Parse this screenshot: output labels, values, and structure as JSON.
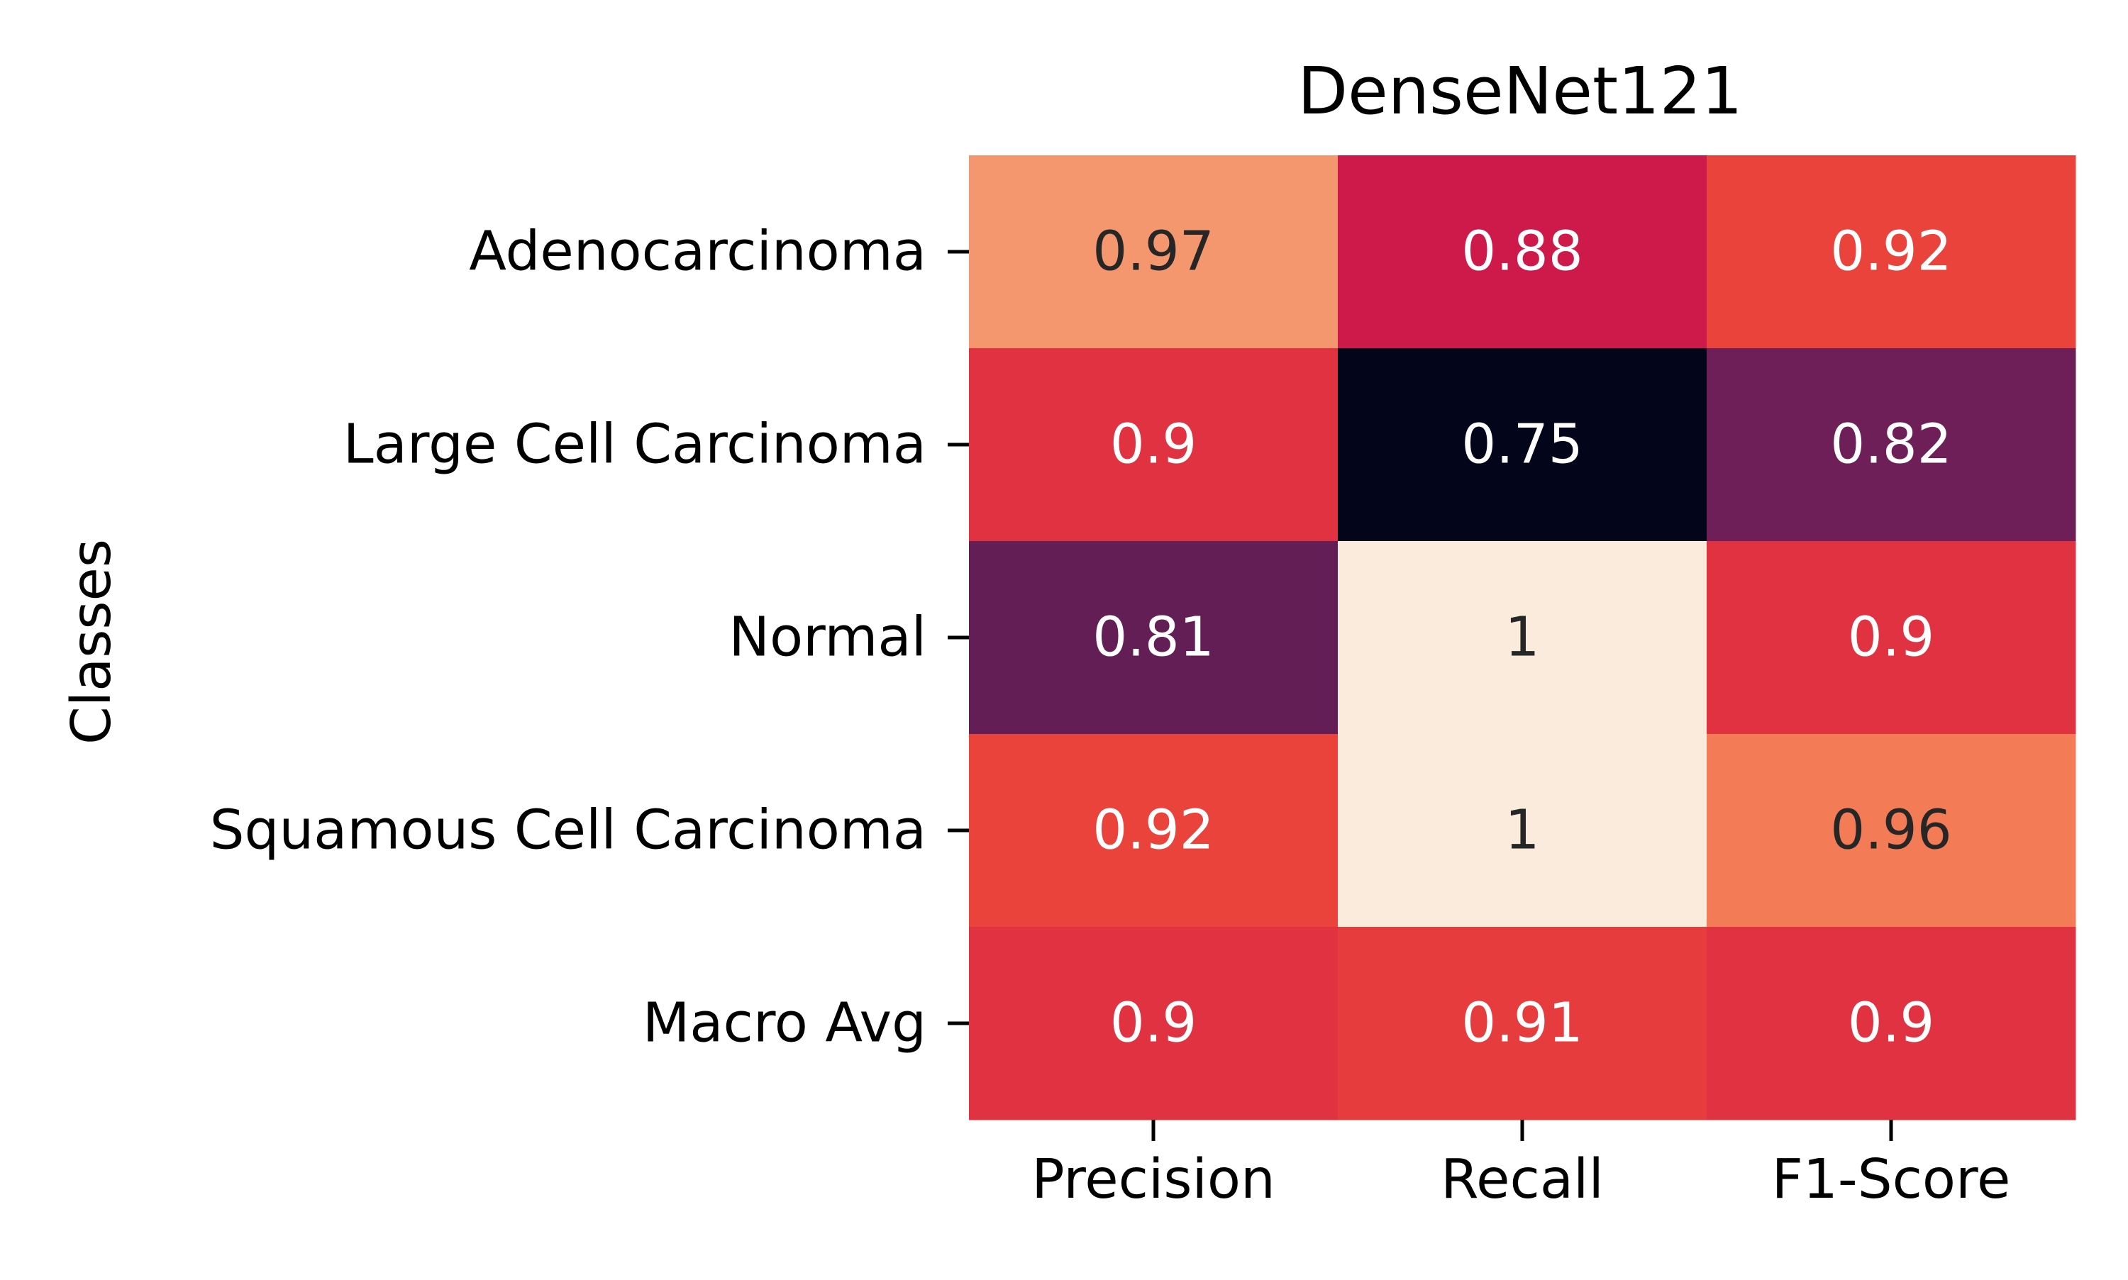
{
  "chart_data": {
    "type": "heatmap",
    "title": "DenseNet121",
    "xlabel": "",
    "ylabel": "Classes",
    "x_categories": [
      "Precision",
      "Recall",
      "F1-Score"
    ],
    "y_categories": [
      "Adenocarcinoma",
      "Large Cell Carcinoma",
      "Normal",
      "Squamous Cell Carcinoma",
      "Macro Avg"
    ],
    "values": [
      [
        0.97,
        0.88,
        0.92
      ],
      [
        0.9,
        0.75,
        0.82
      ],
      [
        0.81,
        1,
        0.9
      ],
      [
        0.92,
        1,
        0.96
      ],
      [
        0.9,
        0.91,
        0.9
      ]
    ],
    "labels": [
      [
        "0.97",
        "0.88",
        "0.92"
      ],
      [
        "0.9",
        "0.75",
        "0.82"
      ],
      [
        "0.81",
        "1",
        "0.9"
      ],
      [
        "0.92",
        "1",
        "0.96"
      ],
      [
        "0.9",
        "0.91",
        "0.9"
      ]
    ],
    "vmin": 0.75,
    "vmax": 1,
    "colorbar": false,
    "colormap": "rocket",
    "colors": {
      "light_text": "#ffffff",
      "dark_text": "#262626"
    }
  }
}
